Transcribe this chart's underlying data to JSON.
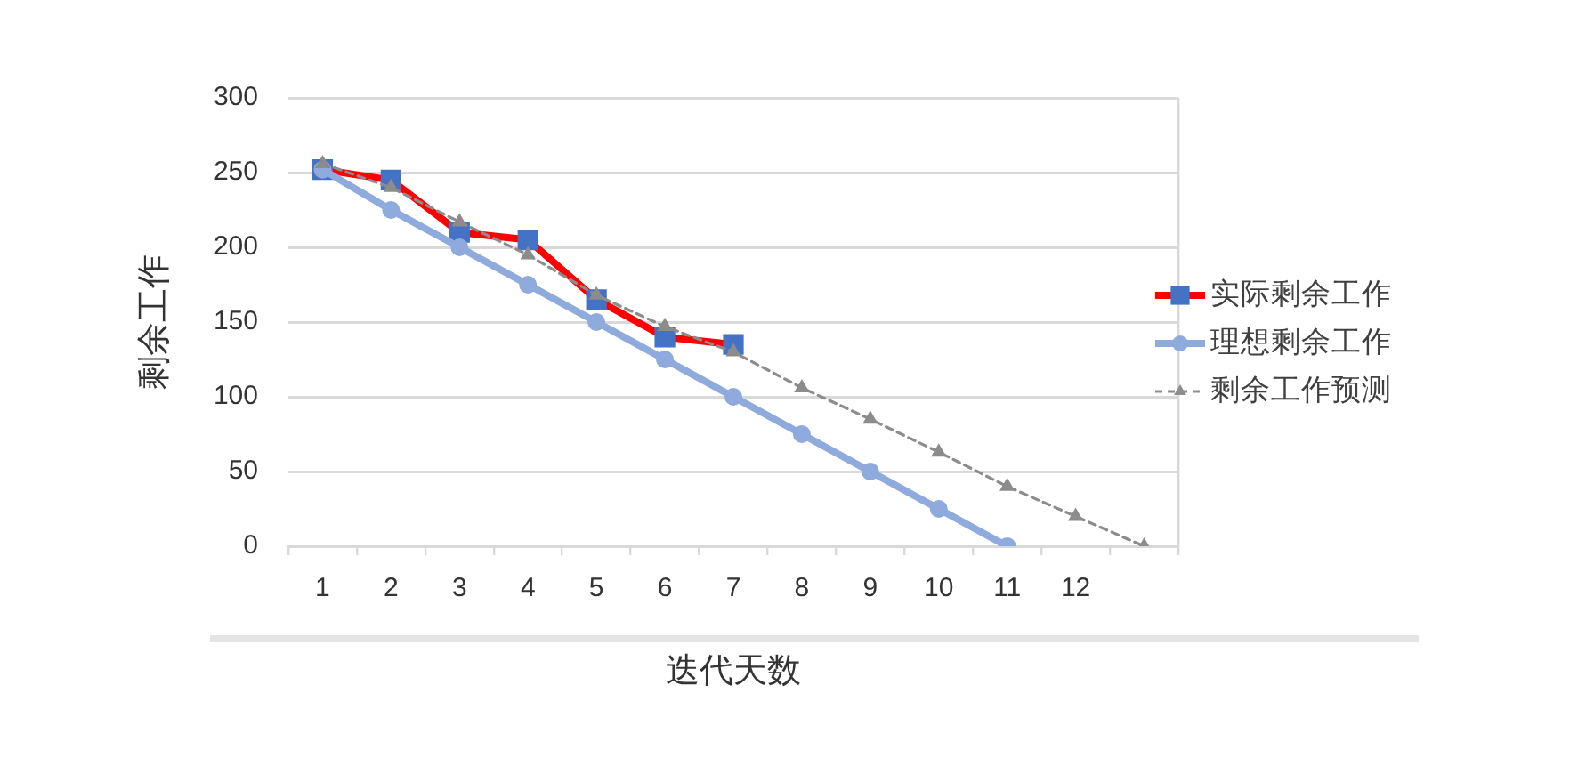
{
  "chart_data": {
    "type": "line",
    "xlabel": "迭代天数",
    "ylabel": "剩余工作",
    "categories": [
      "1",
      "2",
      "3",
      "4",
      "5",
      "6",
      "7",
      "8",
      "9",
      "10",
      "11",
      "12",
      null
    ],
    "series": [
      {
        "name": "实际剩余工作",
        "color": "#ff0000",
        "colors": [
          "#4472c4",
          "#4472c4",
          "#4472c4",
          "#4472c4",
          "#4472c4",
          "#4472c4",
          "#4472c4",
          "#4472c4",
          "#4472c4",
          "#4472c4",
          "#4472c4",
          "#4472c4",
          "#4472c4"
        ],
        "marker": "square",
        "values": [
          252,
          245,
          210,
          205,
          165,
          140,
          135,
          null,
          null,
          null,
          null,
          null,
          null
        ]
      },
      {
        "name": "理想剩余工作",
        "color": "#8faadc",
        "marker": "circle",
        "values": [
          252,
          225,
          200,
          175,
          150,
          125,
          100,
          75,
          50,
          25,
          0,
          null,
          null
        ]
      },
      {
        "name": "剩余工作预测",
        "color": "#8c8c8c",
        "marker": "triangle",
        "line_style": "dashed",
        "values": [
          256,
          240,
          217,
          195,
          168,
          147,
          130,
          106,
          85,
          63,
          40,
          20,
          0
        ]
      }
    ],
    "ylim": [
      0,
      300
    ],
    "yticks": [
      0,
      50,
      100,
      150,
      200,
      250,
      300
    ],
    "grid": "y",
    "legend": "right"
  }
}
